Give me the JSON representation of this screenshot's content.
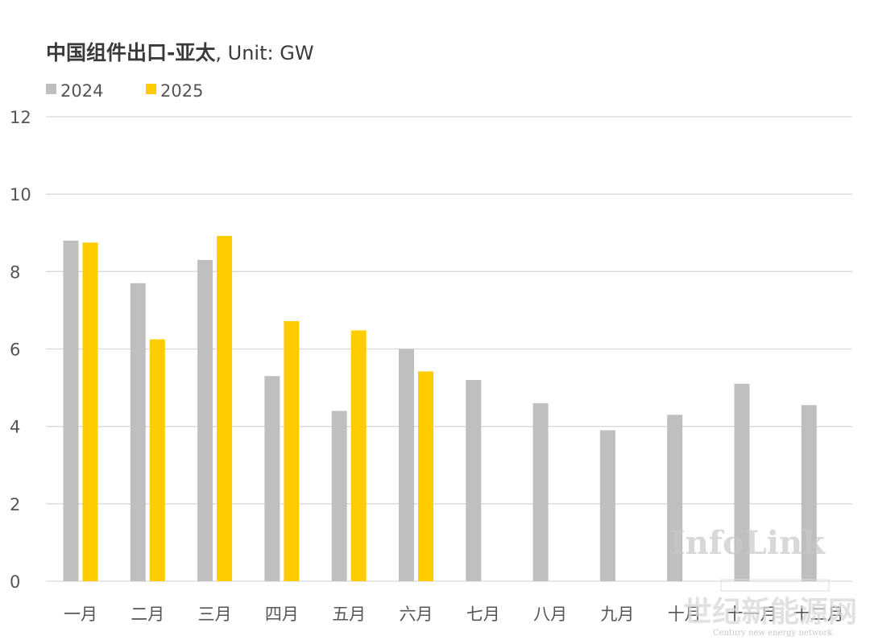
{
  "chart_title": "中国组件出口-亚太",
  "chart_unit": ", Unit: GW",
  "watermarks": {
    "infolink": "InfoLink",
    "cn_site": "世纪新能源网",
    "en_site": "Century new energy network"
  },
  "colors": {
    "series_2024": "#bfbfbf",
    "series_2025": "#ffcc00",
    "grid": "#d9d9d9",
    "text": "#555555"
  },
  "chart_data": {
    "type": "bar",
    "title": "中国组件出口-亚太, Unit: GW",
    "xlabel": "",
    "ylabel": "",
    "ylim": [
      0,
      12
    ],
    "yticks": [
      0,
      2,
      4,
      6,
      8,
      10,
      12
    ],
    "grid": true,
    "legend_position": "top-left",
    "categories": [
      "一月",
      "二月",
      "三月",
      "四月",
      "五月",
      "六月",
      "七月",
      "八月",
      "九月",
      "十月",
      "十一月",
      "十二月"
    ],
    "series": [
      {
        "name": "2024",
        "color": "#bfbfbf",
        "values": [
          8.8,
          7.7,
          8.3,
          5.3,
          4.4,
          6.0,
          5.2,
          4.6,
          3.9,
          4.3,
          5.1,
          4.55
        ]
      },
      {
        "name": "2025",
        "color": "#ffcc00",
        "values": [
          8.75,
          6.25,
          8.92,
          6.72,
          6.48,
          5.42,
          null,
          null,
          null,
          null,
          null,
          null
        ]
      }
    ]
  }
}
